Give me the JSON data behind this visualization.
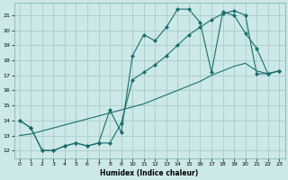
{
  "xlabel": "Humidex (Indice chaleur)",
  "bg_color": "#cce8e8",
  "line_color": "#1a6e6e",
  "grid_color": "#aacccc",
  "xlim": [
    -0.5,
    23.5
  ],
  "ylim": [
    11.5,
    21.8
  ],
  "xticks": [
    0,
    1,
    2,
    3,
    4,
    5,
    6,
    7,
    8,
    9,
    10,
    11,
    12,
    13,
    14,
    15,
    16,
    17,
    18,
    19,
    20,
    21,
    22,
    23
  ],
  "yticks": [
    12,
    13,
    14,
    15,
    16,
    17,
    18,
    19,
    20,
    21
  ],
  "line1_x": [
    0,
    1,
    2,
    3,
    4,
    5,
    6,
    7,
    8,
    9,
    10,
    11,
    12,
    13,
    14,
    15,
    16,
    17,
    18,
    19,
    20,
    21,
    22,
    23
  ],
  "line1_y": [
    14.0,
    13.5,
    12.0,
    12.0,
    12.3,
    12.5,
    12.3,
    12.5,
    14.7,
    13.2,
    18.3,
    19.7,
    19.3,
    20.2,
    21.4,
    21.4,
    20.5,
    17.2,
    21.2,
    21.0,
    19.8,
    18.8,
    17.1,
    17.3
  ],
  "line2_x": [
    0,
    1,
    2,
    3,
    4,
    5,
    6,
    7,
    8,
    9,
    10,
    11,
    12,
    13,
    14,
    15,
    16,
    17,
    18,
    19,
    20,
    21,
    22,
    23
  ],
  "line2_y": [
    14.0,
    13.5,
    12.0,
    12.0,
    12.3,
    12.5,
    12.3,
    12.5,
    12.5,
    13.8,
    16.7,
    17.2,
    17.7,
    18.3,
    19.0,
    19.7,
    20.2,
    20.7,
    21.1,
    21.3,
    21.0,
    17.1,
    17.1,
    17.3
  ],
  "line3_x": [
    0,
    1,
    2,
    3,
    4,
    5,
    6,
    7,
    8,
    9,
    10,
    11,
    12,
    13,
    14,
    15,
    16,
    17,
    18,
    19,
    20,
    21,
    22,
    23
  ],
  "line3_y": [
    13.0,
    13.1,
    13.3,
    13.5,
    13.7,
    13.9,
    14.1,
    14.3,
    14.5,
    14.7,
    14.9,
    15.1,
    15.4,
    15.7,
    16.0,
    16.3,
    16.6,
    17.0,
    17.3,
    17.6,
    17.8,
    17.3,
    17.1,
    17.3
  ]
}
